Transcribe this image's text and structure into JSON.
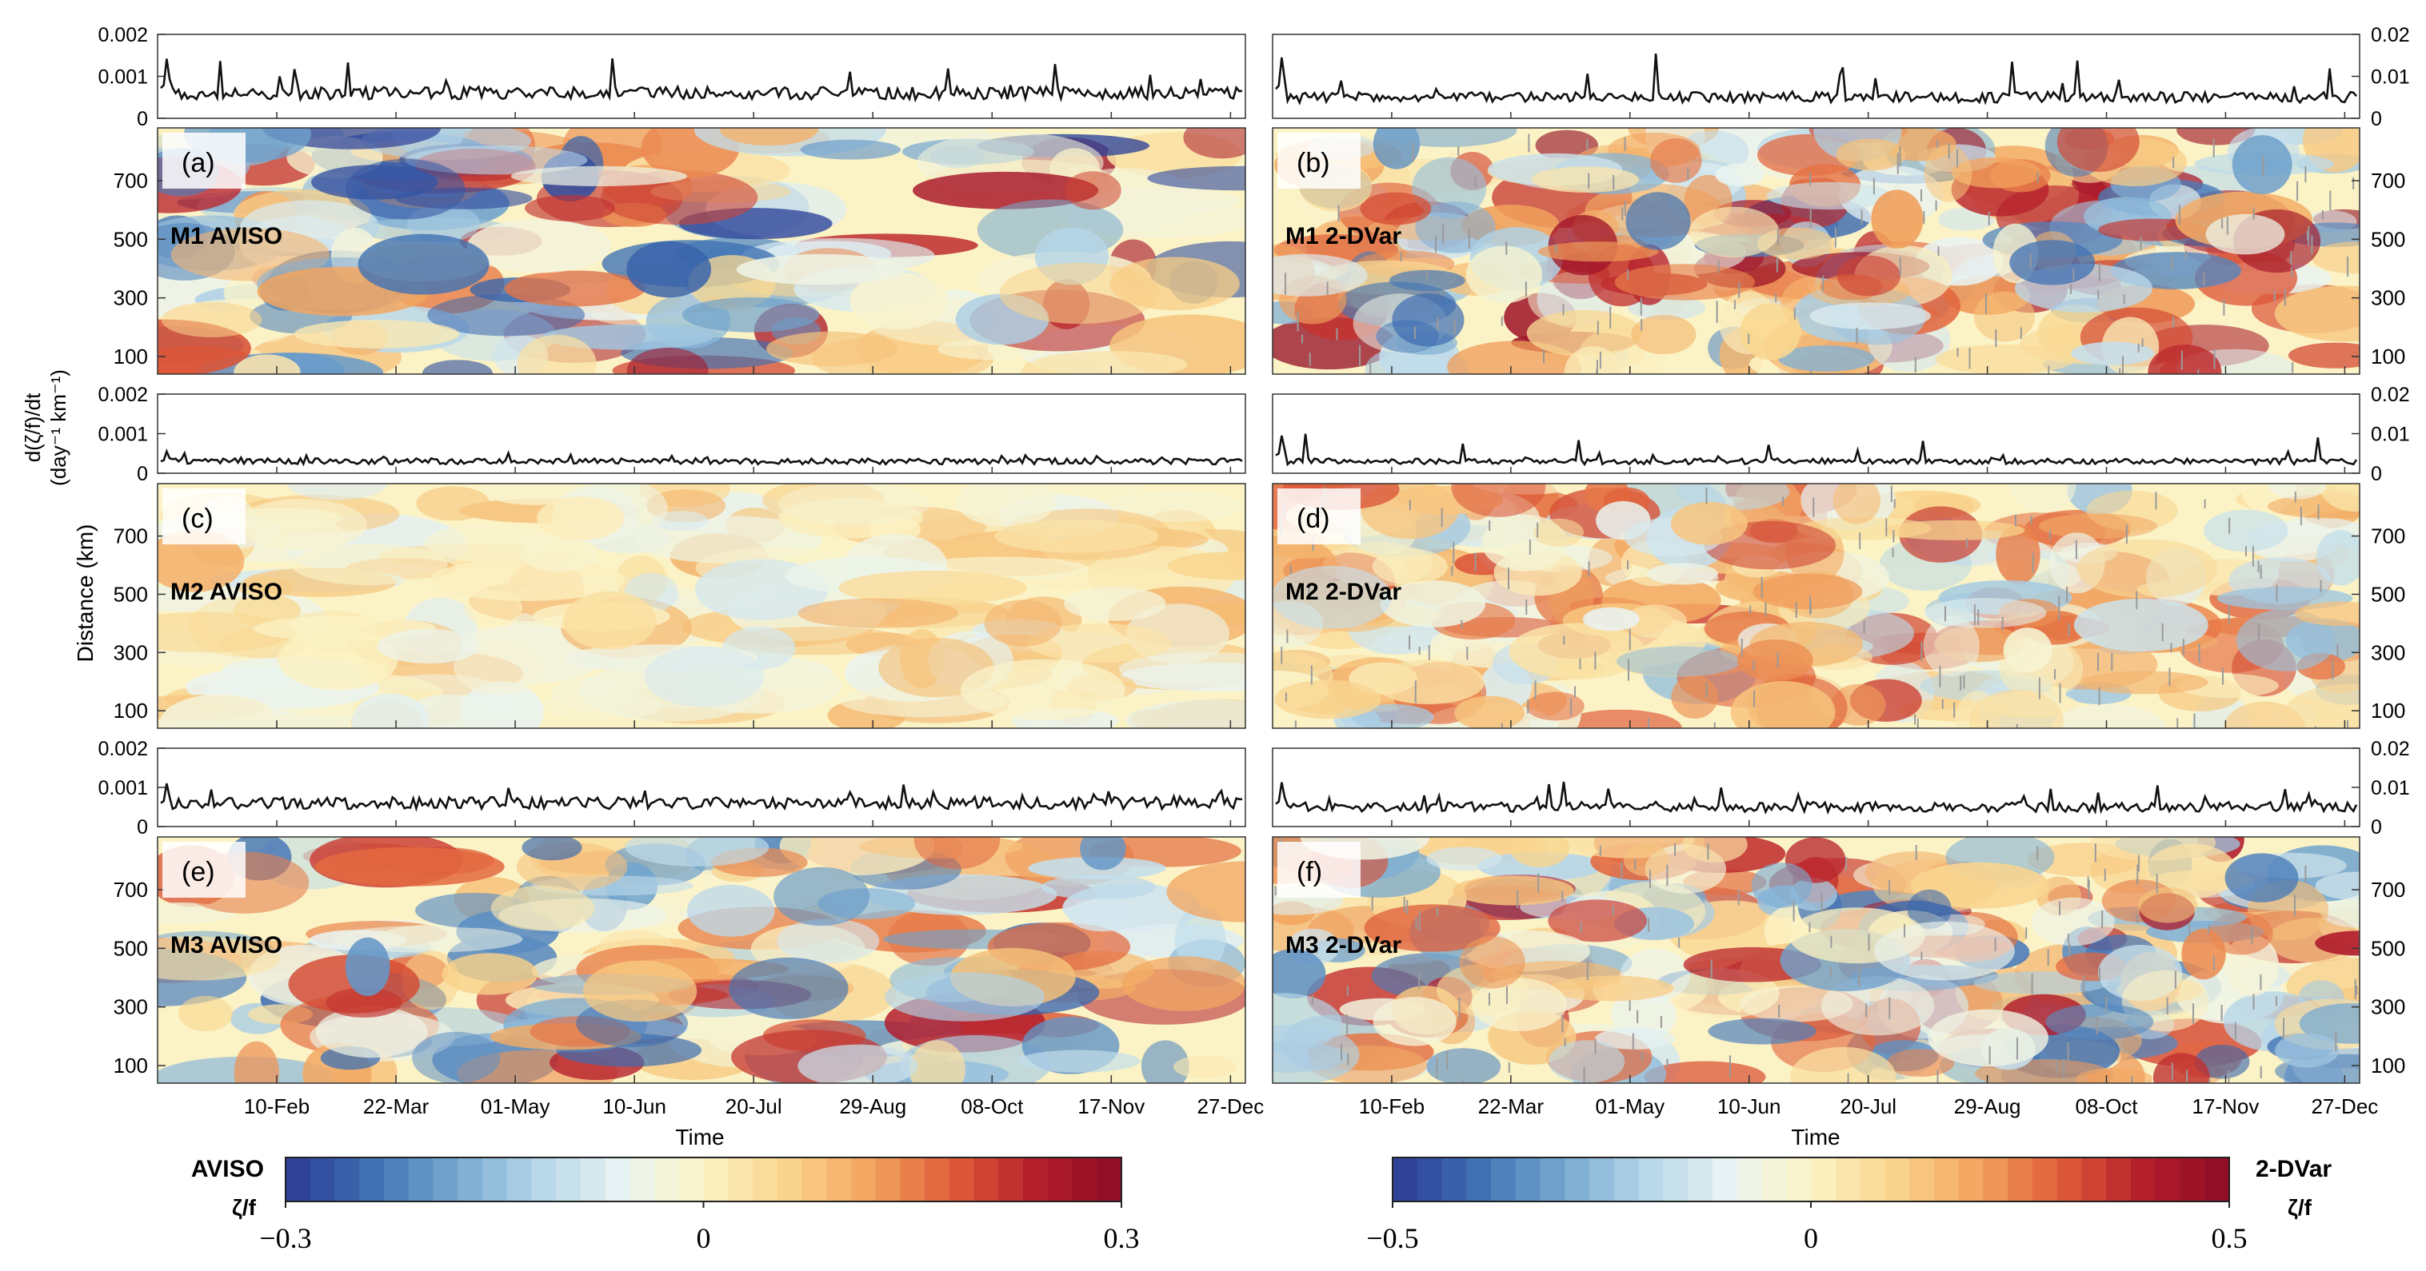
{
  "chart_data": {
    "type": "heatmap",
    "time_axis": {
      "label": "Time",
      "ticks": [
        "10-Feb",
        "22-Mar",
        "01-May",
        "10-Jun",
        "20-Jul",
        "29-Aug",
        "08-Oct",
        "17-Nov",
        "27-Dec"
      ]
    },
    "distance_axis": {
      "label": "Distance (km)",
      "ticks": [
        "100",
        "300",
        "500",
        "700"
      ]
    },
    "derivative_axis": {
      "label_line1": "d(ζ/f)/dt",
      "label_line2": "(day⁻¹ km⁻¹)",
      "left_ticks": [
        "0",
        "0.001",
        "0.002"
      ],
      "right_ticks": [
        "0",
        "0.01",
        "0.02"
      ]
    },
    "panels": [
      {
        "tag": "(a)",
        "title": "M1 AVISO",
        "column": "AVISO",
        "row": 1,
        "amp": 0.28,
        "line_mean": 0.0006,
        "line_max": 0.0014
      },
      {
        "tag": "(b)",
        "title": "M1 2-DVar",
        "column": "2-DVar",
        "row": 1,
        "amp": 0.45,
        "line_mean": 0.005,
        "line_max": 0.015
      },
      {
        "tag": "(c)",
        "title": "M2 AVISO",
        "column": "AVISO",
        "row": 2,
        "amp": 0.1,
        "line_mean": 0.0003,
        "line_max": 0.0005
      },
      {
        "tag": "(d)",
        "title": "M2 2-DVar",
        "column": "2-DVar",
        "row": 2,
        "amp": 0.3,
        "line_mean": 0.003,
        "line_max": 0.01
      },
      {
        "tag": "(e)",
        "title": "M3 AVISO",
        "column": "AVISO",
        "row": 3,
        "amp": 0.25,
        "line_mean": 0.0006,
        "line_max": 0.001
      },
      {
        "tag": "(f)",
        "title": "M3 2-DVar",
        "column": "2-DVar",
        "row": 3,
        "amp": 0.42,
        "line_mean": 0.005,
        "line_max": 0.011
      }
    ],
    "colorbars": [
      {
        "name": "AVISO",
        "label": "AVISO",
        "sublabel": "ζ/f",
        "min": -0.3,
        "max": 0.3,
        "tick_labels": [
          "−0.3",
          "0",
          "0.3"
        ]
      },
      {
        "name": "2-DVar",
        "label": "2-DVar",
        "sublabel": "ζ/f",
        "min": -0.5,
        "max": 0.5,
        "tick_labels": [
          "−0.5",
          "0",
          "0.5"
        ]
      }
    ],
    "colormap": [
      "#2c3a94",
      "#3d6fb2",
      "#74a6cf",
      "#b4d5e8",
      "#e8f3f3",
      "#fbf3c6",
      "#f9d58e",
      "#f2a55f",
      "#df5b39",
      "#b31d2c",
      "#8b0c25"
    ]
  }
}
